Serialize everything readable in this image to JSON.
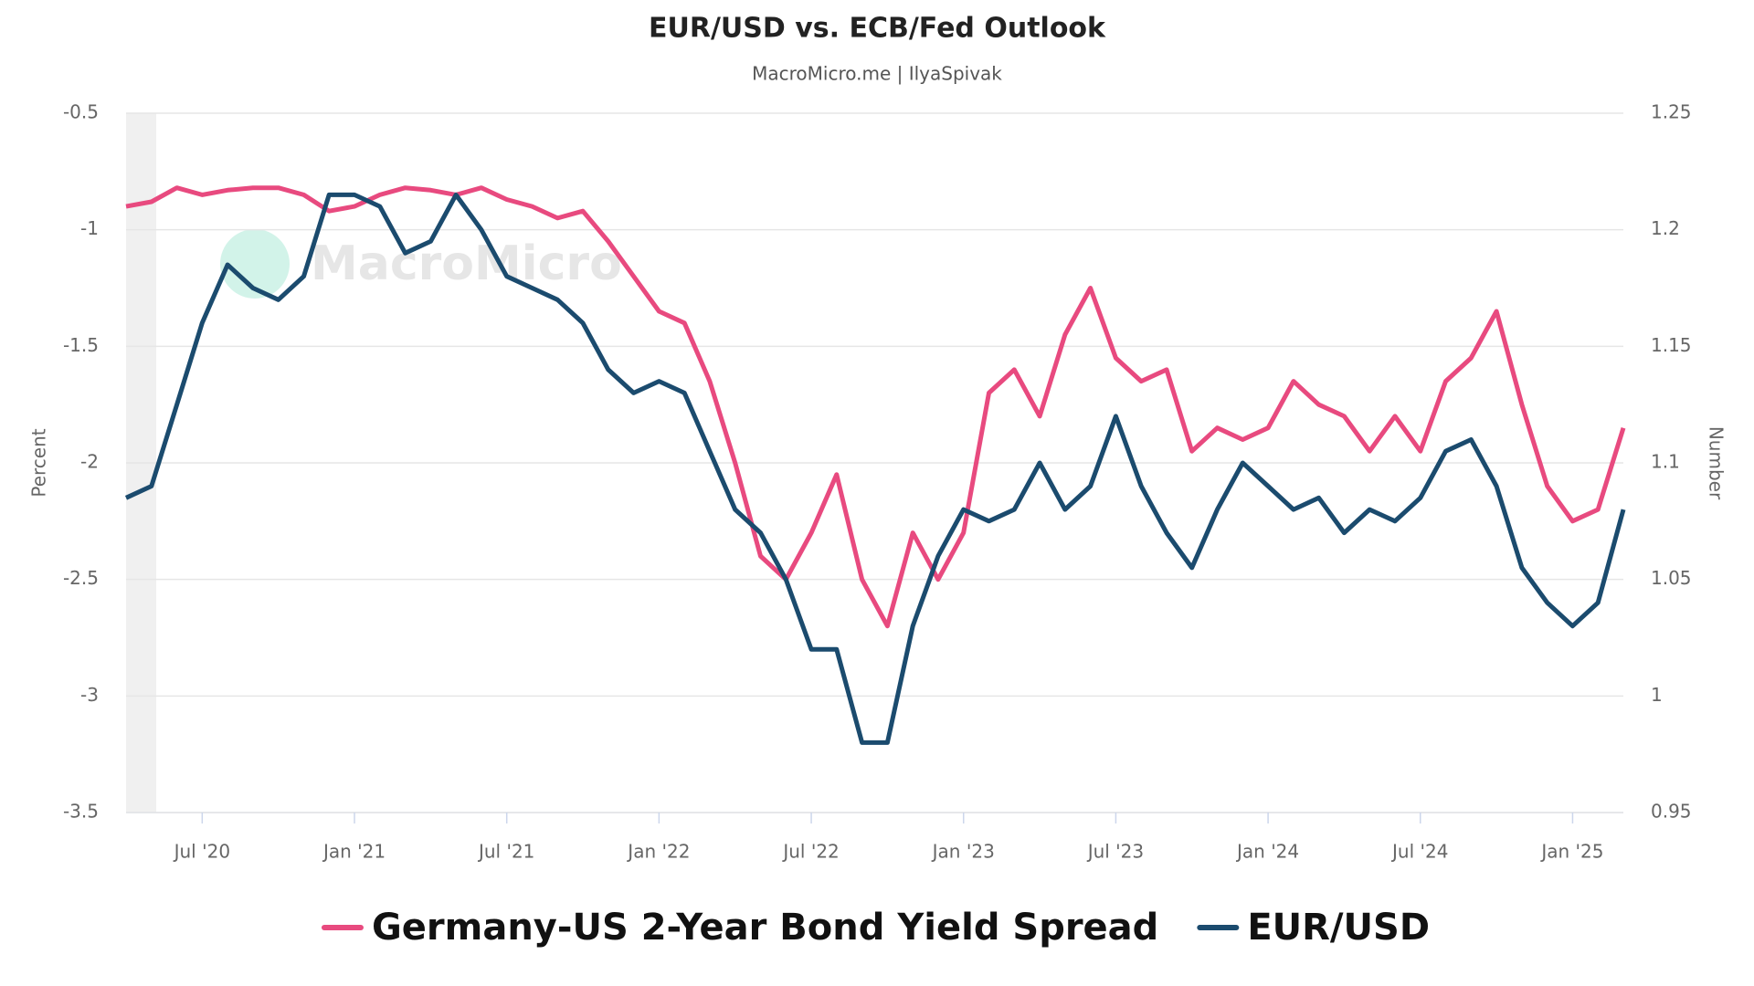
{
  "chart_data": {
    "type": "line",
    "title": "EUR/USD vs. ECB/Fed Outlook",
    "subtitle": "MacroMicro.me | IlyaSpivak",
    "watermark": "MacroMicro",
    "y_label": "Percent",
    "y2_label": "Number",
    "grid": true,
    "legend": "bottom",
    "x": [
      "2020-04",
      "2020-05",
      "2020-06",
      "2020-07",
      "2020-08",
      "2020-09",
      "2020-10",
      "2020-11",
      "2020-12",
      "2021-01",
      "2021-02",
      "2021-03",
      "2021-04",
      "2021-05",
      "2021-06",
      "2021-07",
      "2021-08",
      "2021-09",
      "2021-10",
      "2021-11",
      "2021-12",
      "2022-01",
      "2022-02",
      "2022-03",
      "2022-04",
      "2022-05",
      "2022-06",
      "2022-07",
      "2022-08",
      "2022-09",
      "2022-10",
      "2022-11",
      "2022-12",
      "2023-01",
      "2023-02",
      "2023-03",
      "2023-04",
      "2023-05",
      "2023-06",
      "2023-07",
      "2023-08",
      "2023-09",
      "2023-10",
      "2023-11",
      "2023-12",
      "2024-01",
      "2024-02",
      "2024-03",
      "2024-04",
      "2024-05",
      "2024-06",
      "2024-07",
      "2024-08",
      "2024-09",
      "2024-10",
      "2024-11",
      "2024-12",
      "2025-01",
      "2025-02",
      "2025-03"
    ],
    "xlim": [
      "2020-04",
      "2025-03"
    ],
    "xticks": [
      {
        "value": "2020-07",
        "label": "Jul '20"
      },
      {
        "value": "2021-01",
        "label": "Jan '21"
      },
      {
        "value": "2021-07",
        "label": "Jul '21"
      },
      {
        "value": "2022-01",
        "label": "Jan '22"
      },
      {
        "value": "2022-07",
        "label": "Jul '22"
      },
      {
        "value": "2023-01",
        "label": "Jan '23"
      },
      {
        "value": "2023-07",
        "label": "Jul '23"
      },
      {
        "value": "2024-01",
        "label": "Jan '24"
      },
      {
        "value": "2024-07",
        "label": "Jul '24"
      },
      {
        "value": "2025-01",
        "label": "Jan '25"
      }
    ],
    "ylim": [
      -3.5,
      -0.5
    ],
    "yticks": [
      -3.5,
      -3,
      -2.5,
      -2,
      -1.5,
      -1,
      -0.5
    ],
    "y2lim": [
      0.95,
      1.25
    ],
    "y2ticks": [
      0.95,
      1,
      1.05,
      1.1,
      1.15,
      1.2,
      1.25
    ],
    "series": [
      {
        "name": "Germany-US 2-Year Bond Yield Spread",
        "color": "#e84a7f",
        "axis": "y",
        "values": [
          -0.9,
          -0.88,
          -0.82,
          -0.85,
          -0.83,
          -0.82,
          -0.82,
          -0.85,
          -0.92,
          -0.9,
          -0.85,
          -0.82,
          -0.83,
          -0.85,
          -0.82,
          -0.87,
          -0.9,
          -0.95,
          -0.92,
          -1.05,
          -1.2,
          -1.35,
          -1.4,
          -1.65,
          -2.0,
          -2.4,
          -2.5,
          -2.3,
          -2.05,
          -2.5,
          -2.7,
          -2.3,
          -2.5,
          -2.3,
          -1.7,
          -1.6,
          -1.8,
          -1.45,
          -1.25,
          -1.55,
          -1.65,
          -1.6,
          -1.95,
          -1.85,
          -1.9,
          -1.85,
          -1.65,
          -1.75,
          -1.8,
          -1.95,
          -1.8,
          -1.95,
          -1.65,
          -1.55,
          -1.35,
          -1.75,
          -2.1,
          -2.25,
          -2.2,
          -1.85
        ]
      },
      {
        "name": "EUR/USD",
        "color": "#1b4b6e",
        "axis": "y2",
        "values": [
          1.085,
          1.09,
          1.125,
          1.16,
          1.185,
          1.175,
          1.17,
          1.18,
          1.215,
          1.215,
          1.21,
          1.19,
          1.195,
          1.215,
          1.2,
          1.18,
          1.175,
          1.17,
          1.16,
          1.14,
          1.13,
          1.135,
          1.13,
          1.105,
          1.08,
          1.07,
          1.05,
          1.02,
          1.02,
          0.98,
          0.98,
          1.03,
          1.06,
          1.08,
          1.075,
          1.08,
          1.1,
          1.08,
          1.09,
          1.12,
          1.09,
          1.07,
          1.055,
          1.08,
          1.1,
          1.09,
          1.08,
          1.085,
          1.07,
          1.08,
          1.075,
          1.085,
          1.105,
          1.11,
          1.09,
          1.055,
          1.04,
          1.03,
          1.04,
          1.08
        ]
      }
    ]
  }
}
